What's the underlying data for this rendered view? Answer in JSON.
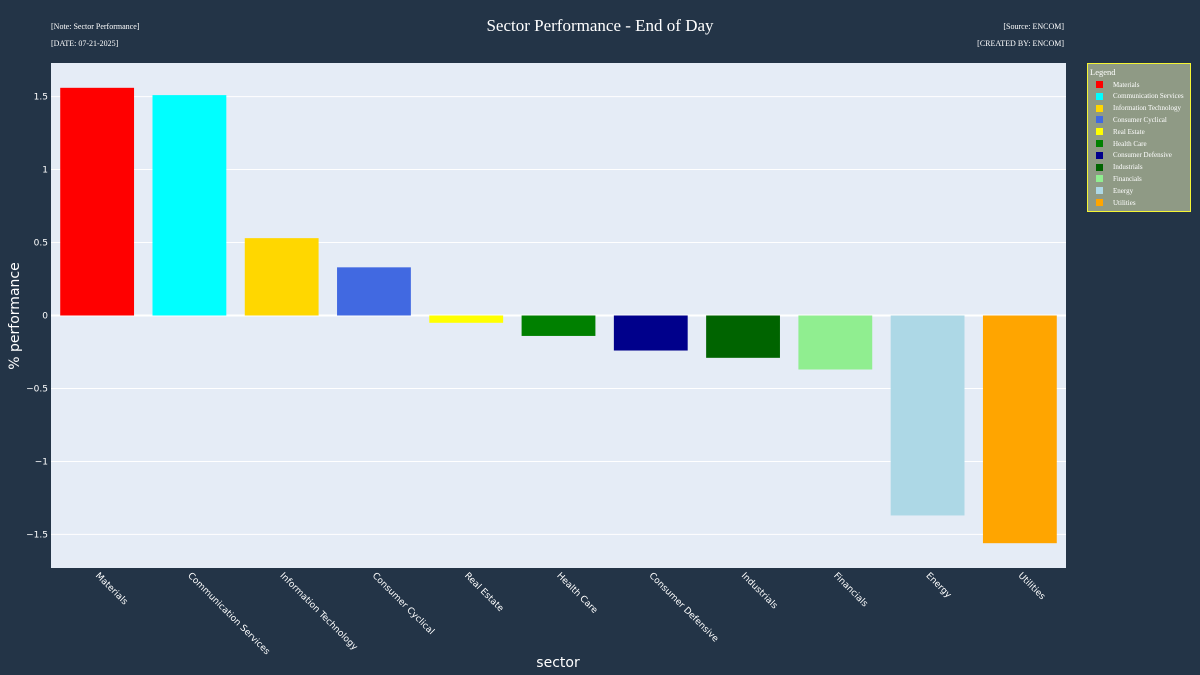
{
  "header": {
    "title": "Sector Performance - End of Day",
    "note_top_left": "[Note: Sector Performance]",
    "note_bottom_left": "[DATE: 07-21-2025]",
    "note_top_right": "[Source: ENCOM]",
    "note_bottom_right": "[CREATED BY: ENCOM]"
  },
  "legend": {
    "title": "Legend",
    "placement": "right",
    "border_color": "#f5f534",
    "background": "#8f9a85"
  },
  "colors": {
    "page_background": "#233447",
    "plot_background": "#e5ecf6",
    "gridline": "#ffffff"
  },
  "chart_data": {
    "type": "bar",
    "title": "Sector Performance - End of Day",
    "xlabel": "sector",
    "ylabel": "% performance",
    "ylim": [
      -1.73,
      1.73
    ],
    "yticks": [
      1.5,
      1,
      0.5,
      0,
      -0.5,
      -1,
      -1.5
    ],
    "ytick_labels": [
      "1.5",
      "1",
      "0.5",
      "0",
      "−0.5",
      "−1",
      "−1.5"
    ],
    "grid": true,
    "categories": [
      "Materials",
      "Communication Services",
      "Information Technology",
      "Consumer Cyclical",
      "Real Estate",
      "Health Care",
      "Consumer Defensive",
      "Industrials",
      "Financials",
      "Energy",
      "Utilities"
    ],
    "values": [
      1.56,
      1.51,
      0.53,
      0.33,
      -0.05,
      -0.14,
      -0.24,
      -0.29,
      -0.37,
      -1.37,
      -1.56
    ],
    "bar_colors": [
      "#ff0000",
      "#00ffff",
      "#ffd700",
      "#4169e1",
      "#ffff00",
      "#008000",
      "#00008b",
      "#006400",
      "#90ee90",
      "#add8e6",
      "#ffa500"
    ]
  }
}
